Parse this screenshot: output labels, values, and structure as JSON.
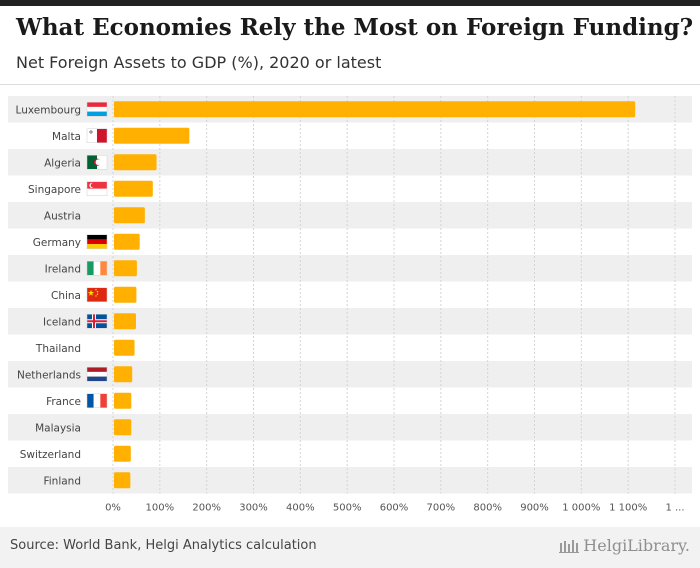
{
  "title": "What Economies Rely the Most on Foreign Funding?",
  "subtitle": "Net Foreign Assets to GDP (%), 2020 or latest",
  "source": "Source: World Bank, Helgi Analytics calculation",
  "brand": "HelgiLibrary.",
  "colors": {
    "bar": "#ffb000",
    "stripe": "#efefef",
    "grid": "#d4d4d4",
    "text": "#444444"
  },
  "chart_data": {
    "type": "bar",
    "orientation": "horizontal",
    "title": "What Economies Rely the Most on Foreign Funding?",
    "subtitle": "Net Foreign Assets to GDP (%), 2020 or latest",
    "categories": [
      "Luxembourg",
      "Malta",
      "Algeria",
      "Singapore",
      "Austria",
      "Germany",
      "Ireland",
      "China",
      "Iceland",
      "Thailand",
      "Netherlands",
      "France",
      "Malaysia",
      "Switzerland",
      "Finland"
    ],
    "values": [
      1115,
      163,
      93,
      85,
      68,
      57,
      51,
      50,
      49,
      46,
      41,
      39,
      39,
      38,
      37
    ],
    "flags": [
      "luxembourg",
      "malta",
      "algeria",
      "singapore",
      "",
      "germany",
      "ireland",
      "china",
      "iceland",
      "",
      "netherlands",
      "france",
      "",
      "",
      ""
    ],
    "xlim": [
      0,
      1200
    ],
    "x_ticks": [
      "0%",
      "100%",
      "200%",
      "300%",
      "400%",
      "500%",
      "600%",
      "700%",
      "800%",
      "900%",
      "1 000%",
      "1 100%",
      "1 ..."
    ],
    "xlabel": "",
    "ylabel": "",
    "grid": true
  }
}
